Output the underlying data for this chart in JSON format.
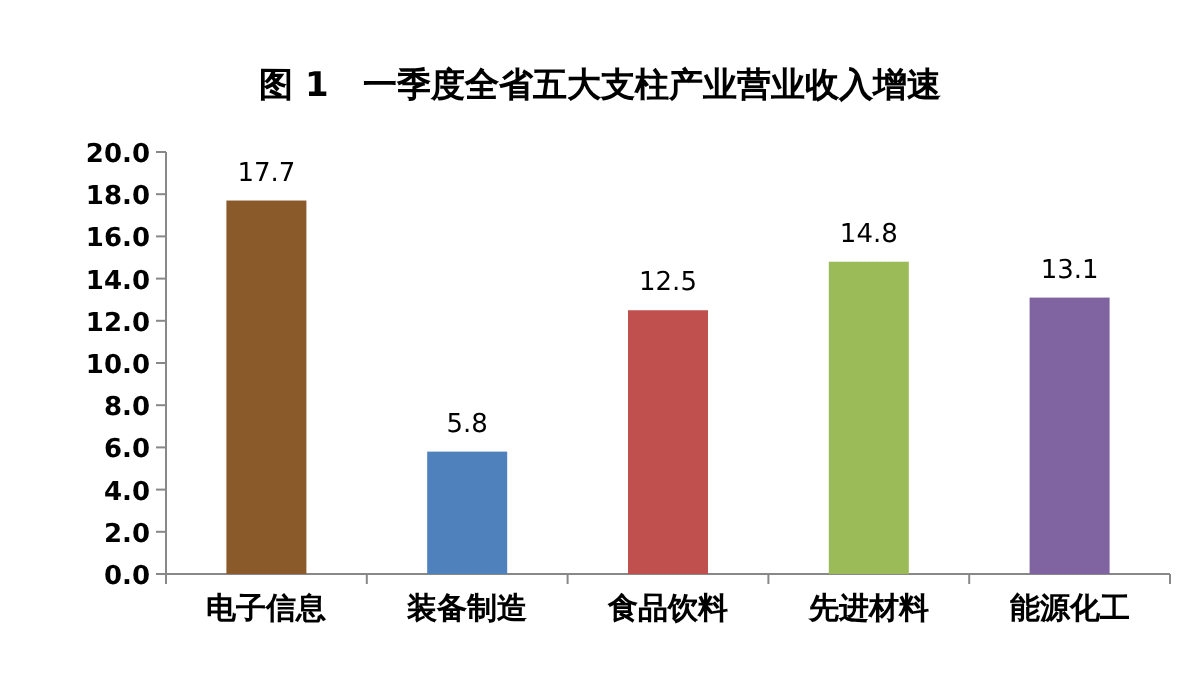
{
  "chart_data": {
    "type": "bar",
    "title": "图 1　一季度全省五大支柱产业营业收入增速",
    "categories": [
      "电子信息",
      "装备制造",
      "食品饮料",
      "先进材料",
      "能源化工"
    ],
    "values": [
      17.7,
      5.8,
      12.5,
      14.8,
      13.1
    ],
    "colors": [
      "#8b5a2b",
      "#4f81bd",
      "#c0504d",
      "#9bbb59",
      "#8064a2"
    ],
    "ylim": [
      0,
      20
    ],
    "yticks": [
      {
        "value": 0,
        "label": "0.0"
      },
      {
        "value": 2,
        "label": "2.0"
      },
      {
        "value": 4,
        "label": "4.0"
      },
      {
        "value": 6,
        "label": "6.0"
      },
      {
        "value": 8,
        "label": "8.0"
      },
      {
        "value": 10,
        "label": "10.0"
      },
      {
        "value": 12,
        "label": "12.0"
      },
      {
        "value": 14,
        "label": "14.0"
      },
      {
        "value": 16,
        "label": "16.0"
      },
      {
        "value": 18,
        "label": "18.0"
      },
      {
        "value": 20,
        "label": "20.0"
      }
    ],
    "data_labels": true,
    "grid": false
  }
}
